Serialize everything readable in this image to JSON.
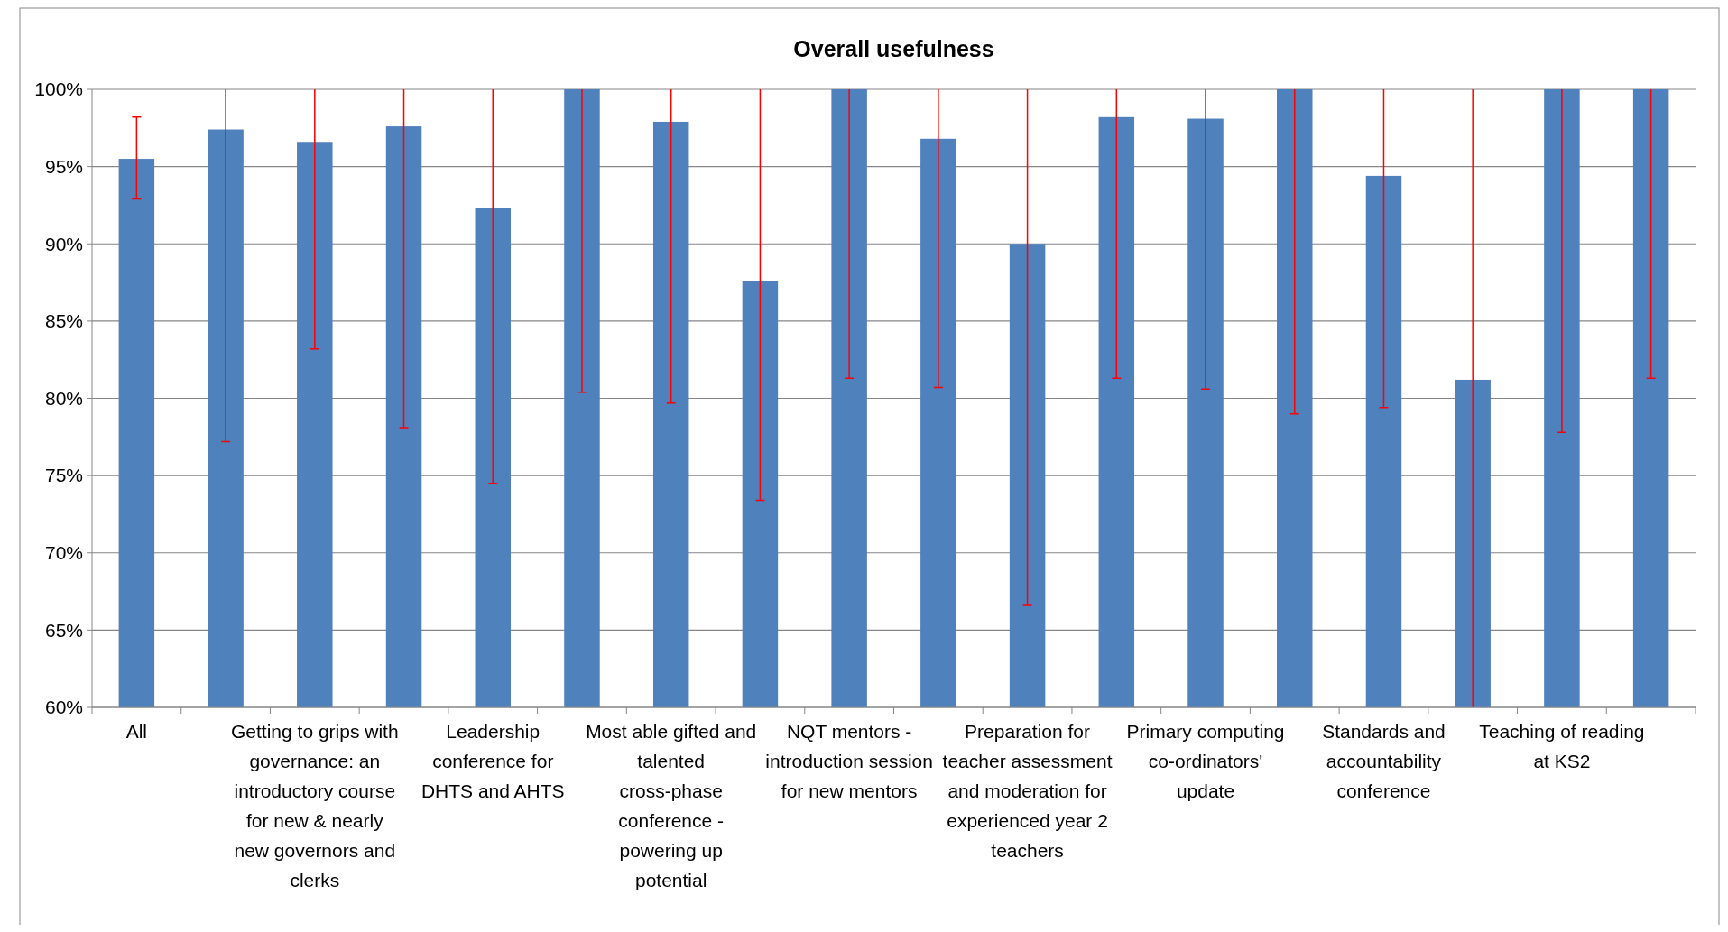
{
  "chart_data": {
    "type": "bar",
    "title": "Overall usefulness",
    "categories": [
      "All",
      null,
      "Getting to grips with governance: an introductory course for new & nearly new governors and clerks",
      null,
      "Leadership conference for DHTS and AHTS",
      null,
      "Most able gifted and talented cross-phase conference - powering up potential",
      null,
      "NQT mentors - introduction session for new mentors",
      null,
      "Preparation for teacher assessment and moderation for experienced year 2 teachers",
      null,
      "Primary computing co-ordinators' update",
      null,
      "Standards and accountability conference",
      null,
      "Teaching of reading at KS2",
      null
    ],
    "values": [
      95.5,
      97.4,
      96.6,
      97.6,
      92.3,
      100,
      97.9,
      87.6,
      100,
      96.8,
      90.0,
      98.2,
      98.1,
      100,
      94.4,
      81.2,
      100,
      100
    ],
    "color": "#4f81bd",
    "errors": [
      [
        92.9,
        98.2
      ],
      [
        77.2,
        100
      ],
      [
        83.2,
        100
      ],
      [
        78.1,
        100
      ],
      [
        74.5,
        100
      ],
      [
        80.4,
        100
      ],
      [
        79.7,
        100
      ],
      [
        73.4,
        100
      ],
      [
        81.3,
        100
      ],
      [
        80.7,
        100
      ],
      [
        66.6,
        100
      ],
      [
        81.3,
        100
      ],
      [
        80.6,
        100
      ],
      [
        79.0,
        100
      ],
      [
        79.4,
        100
      ],
      [
        60,
        100
      ],
      [
        77.8,
        100
      ],
      [
        81.3,
        100
      ]
    ],
    "ylim": [
      60,
      100
    ],
    "yticks": [
      {
        "value": 60,
        "label": "60%"
      },
      {
        "value": 65,
        "label": "65%"
      },
      {
        "value": 70,
        "label": "70%"
      },
      {
        "value": 75,
        "label": "75%"
      },
      {
        "value": 80,
        "label": "80%"
      },
      {
        "value": 85,
        "label": "85%"
      },
      {
        "value": 90,
        "label": "90%"
      },
      {
        "value": 95,
        "label": "95%"
      },
      {
        "value": 100,
        "label": "100%"
      }
    ],
    "grid": "y"
  }
}
